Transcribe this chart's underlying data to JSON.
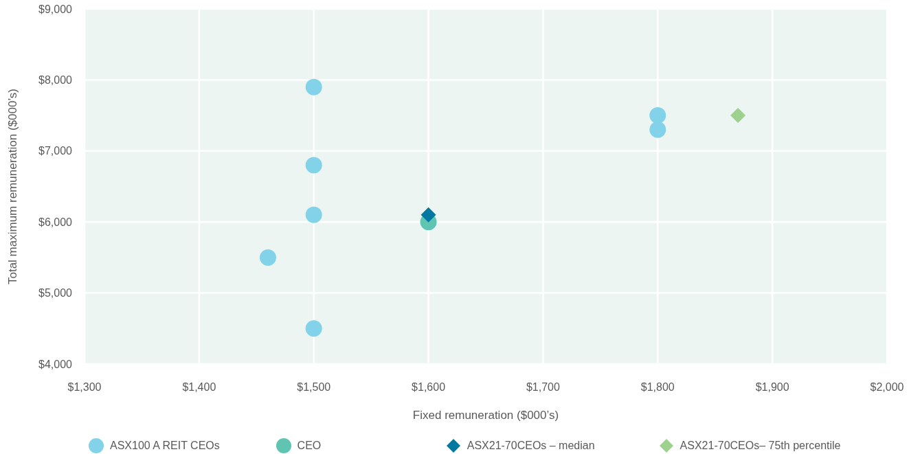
{
  "chart_data": {
    "type": "scatter",
    "xlabel": "Fixed remuneration ($000’s)",
    "ylabel": "Total maximum remuneration ($000’s)",
    "xlim": [
      1300,
      2000
    ],
    "xticks": [
      {
        "value": 1300,
        "label": "$1,300"
      },
      {
        "value": 1400,
        "label": "$1,400"
      },
      {
        "value": 1500,
        "label": "$1,500"
      },
      {
        "value": 1600,
        "label": "$1,600"
      },
      {
        "value": 1700,
        "label": "$1,700"
      },
      {
        "value": 1800,
        "label": "$1,800"
      },
      {
        "value": 1900,
        "label": "$1,900"
      },
      {
        "value": 2000,
        "label": "$2,000"
      }
    ],
    "ylim": [
      4000,
      9000
    ],
    "yticks": [
      {
        "value": 4000,
        "label": "$4,000"
      },
      {
        "value": 5000,
        "label": "$5,000"
      },
      {
        "value": 6000,
        "label": "$6,000"
      },
      {
        "value": 7000,
        "label": "$7,000"
      },
      {
        "value": 8000,
        "label": "$8,000"
      },
      {
        "value": 9000,
        "label": "$9,000"
      }
    ],
    "grid": true,
    "legend": "bottom",
    "series": [
      {
        "name": "ASX100 A REIT CEOs",
        "color": "#82d3ea",
        "marker": "circle",
        "x": [
          1500,
          1500,
          1500,
          1460,
          1500,
          1800,
          1800
        ],
        "values": [
          7900,
          6800,
          6100,
          5500,
          4500,
          7500,
          7300
        ]
      },
      {
        "name": "CEO",
        "color": "#5fc4b1",
        "marker": "circle",
        "x": [
          1600
        ],
        "values": [
          6000
        ]
      },
      {
        "name": "ASX21-70CEOs – median",
        "color": "#00789f",
        "marker": "diamond",
        "x": [
          1600
        ],
        "values": [
          6100
        ]
      },
      {
        "name": "ASX21-70CEOs– 75th percentile",
        "color": "#9dd18e",
        "marker": "diamond",
        "x": [
          1870
        ],
        "values": [
          7500
        ]
      }
    ]
  }
}
